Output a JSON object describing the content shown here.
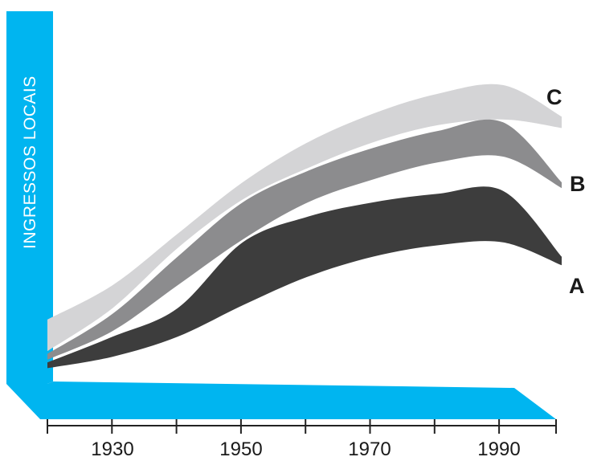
{
  "chart_data": {
    "type": "area",
    "title": "",
    "xlabel": "",
    "ylabel": "INGRESSOS LOCAIS",
    "x_ticks": [
      "1930",
      "1950",
      "1970",
      "1990"
    ],
    "xlim": [
      1920,
      1999
    ],
    "ylim": [
      0,
      100
    ],
    "grid": false,
    "legend": "inline-right",
    "colors": {
      "axis": "#00b5f0",
      "A": "#3d3d3d",
      "B": "#8c8c8e",
      "C": "#d4d4d6",
      "tick_text": "#1a1a1a"
    },
    "x": [
      1920,
      1930,
      1940,
      1950,
      1960,
      1970,
      1980,
      1990,
      1999
    ],
    "series": [
      {
        "name": "A",
        "lower": [
          1,
          5,
          12,
          23,
          33,
          40,
          44,
          45,
          37
        ],
        "upper": [
          3,
          12,
          22,
          45,
          54,
          59,
          62,
          63,
          40
        ]
      },
      {
        "name": "B",
        "lower": [
          4,
          14,
          30,
          46,
          59,
          67,
          73,
          75,
          64
        ],
        "upper": [
          6,
          20,
          40,
          59,
          70,
          78,
          84,
          87,
          66
        ]
      },
      {
        "name": "C",
        "lower": [
          7,
          22,
          43,
          60,
          71,
          80,
          86,
          88,
          85
        ],
        "upper": [
          18,
          30,
          48,
          66,
          80,
          90,
          97,
          100,
          89
        ]
      }
    ]
  }
}
